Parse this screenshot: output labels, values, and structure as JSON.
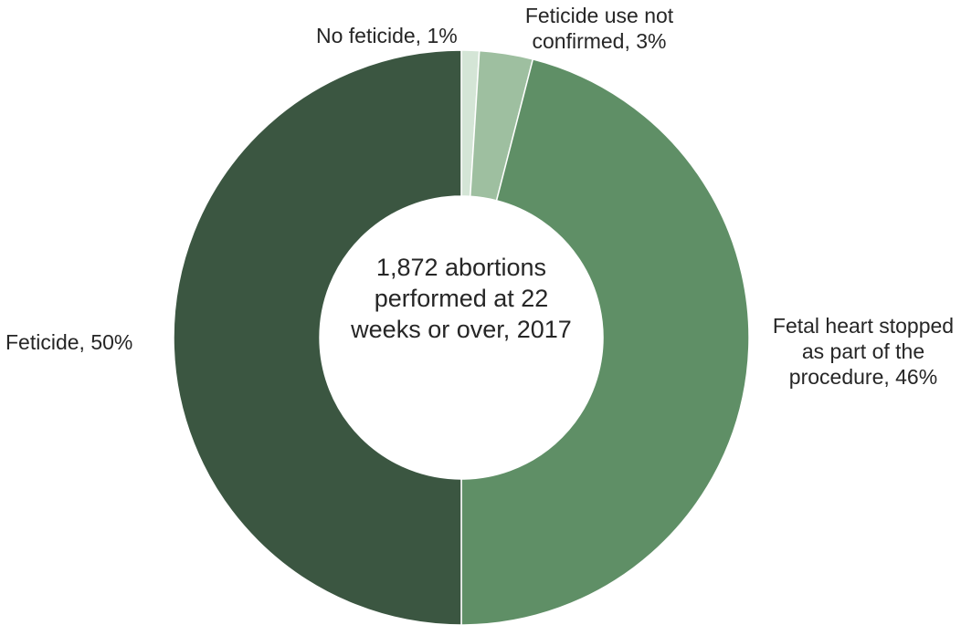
{
  "chart_data": {
    "type": "pie",
    "variant": "donut",
    "center_text": "1,872 abortions performed at 22 weeks or over, 2017",
    "slices": [
      {
        "label": "No feticide, 1%",
        "category": "No feticide",
        "value": 1,
        "color": "#d4e5d6"
      },
      {
        "label": "Feticide use not confirmed, 3%",
        "category": "Feticide use not confirmed",
        "value": 3,
        "color": "#9ebfa0"
      },
      {
        "label": "Fetal heart stopped as part of the procedure, 46%",
        "category": "Fetal heart stopped as part of the procedure",
        "value": 46,
        "color": "#5f8f66"
      },
      {
        "label": "Feticide, 50%",
        "category": "Feticide",
        "value": 50,
        "color": "#3b5641"
      }
    ],
    "legend": "none",
    "data_labels": "outside"
  }
}
